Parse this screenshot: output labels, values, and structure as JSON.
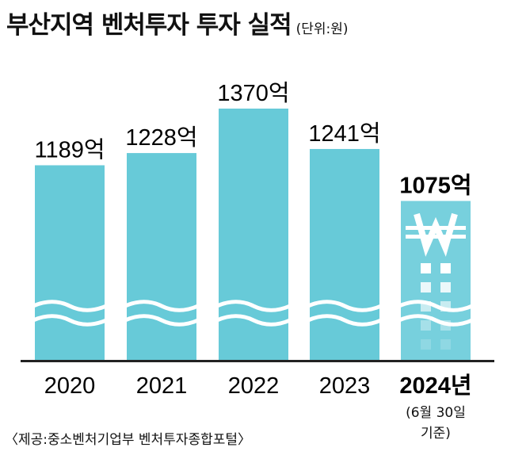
{
  "header": {
    "title": "부산지역 벤처투자 투자 실적",
    "unit": "(단위:원)"
  },
  "chart_data": {
    "type": "bar",
    "title": "부산지역 벤처투자 투자 실적",
    "unit": "원",
    "categories": [
      "2020",
      "2021",
      "2022",
      "2023",
      "2024년"
    ],
    "values": [
      1189,
      1228,
      1370,
      1241,
      1075
    ],
    "value_labels": [
      "1189억",
      "1228억",
      "1370억",
      "1241억",
      "1075억"
    ],
    "highlight_index": 4,
    "bar_color": "#67cad8",
    "highlight_color": "#77d0dd",
    "axis_break": true
  },
  "note": {
    "line1": "(6월 30일",
    "line2": "기준)"
  },
  "source": "〈제공:중소벤처기업부 벤처투자종합포털〉",
  "icons": {
    "highlight_bar": "won-sign-icon"
  }
}
